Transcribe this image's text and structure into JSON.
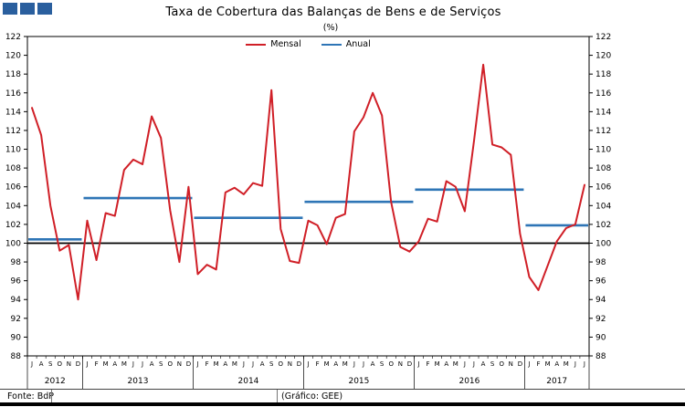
{
  "header": {
    "title": "Taxa de Cobertura das Balanças de Bens e de Serviços",
    "subtitle": "(%)"
  },
  "footer": {
    "source": "Fonte: BdP",
    "credit": "(Gráfico: GEE)"
  },
  "colors": {
    "mensal_red": "#D01F27",
    "anual_blue": "#2E75B6",
    "logo_blue": "#2A5F9E",
    "reference_black": "#000000"
  },
  "chart_data": {
    "type": "line",
    "title": "Taxa de Cobertura das Balanças de Bens e de Serviços",
    "subtitle": "(%)",
    "ylim": [
      88,
      122
    ],
    "yticks": [
      88,
      90,
      92,
      94,
      96,
      98,
      100,
      102,
      104,
      106,
      108,
      110,
      112,
      114,
      116,
      118,
      120,
      122
    ],
    "reference_line": 100,
    "legend_position": "top",
    "grid": "off",
    "years": [
      {
        "label": "2012",
        "months": [
          "J",
          "A",
          "S",
          "O",
          "N",
          "D"
        ],
        "annual": 100.4
      },
      {
        "label": "2013",
        "months": [
          "J",
          "F",
          "M",
          "A",
          "M",
          "J",
          "J",
          "A",
          "S",
          "O",
          "N",
          "D"
        ],
        "annual": 104.8
      },
      {
        "label": "2014",
        "months": [
          "J",
          "F",
          "M",
          "A",
          "M",
          "J",
          "J",
          "A",
          "S",
          "O",
          "N",
          "D"
        ],
        "annual": 102.7
      },
      {
        "label": "2015",
        "months": [
          "J",
          "F",
          "M",
          "A",
          "M",
          "J",
          "J",
          "A",
          "S",
          "O",
          "N",
          "D"
        ],
        "annual": 104.4
      },
      {
        "label": "2016",
        "months": [
          "J",
          "F",
          "M",
          "A",
          "M",
          "J",
          "J",
          "A",
          "S",
          "O",
          "N",
          "D"
        ],
        "annual": 105.7
      },
      {
        "label": "2017",
        "months": [
          "J",
          "F",
          "M",
          "A",
          "M",
          "J",
          "J"
        ],
        "annual": 101.9
      }
    ],
    "series": [
      {
        "name": "Mensal",
        "color": "#D01F27",
        "values": [
          114.4,
          111.5,
          104.0,
          99.2,
          99.8,
          94.0,
          102.4,
          98.2,
          103.2,
          102.9,
          107.8,
          108.9,
          108.4,
          113.5,
          111.2,
          103.5,
          98.0,
          106.0,
          96.7,
          97.7,
          97.2,
          105.4,
          105.9,
          105.2,
          106.4,
          106.1,
          116.3,
          101.5,
          98.1,
          97.9,
          102.4,
          101.9,
          99.9,
          102.7,
          103.1,
          111.9,
          113.4,
          116.0,
          113.6,
          104.4,
          99.6,
          99.1,
          100.2,
          102.6,
          102.3,
          106.6,
          106.0,
          103.4,
          110.9,
          119.0,
          110.5,
          110.2,
          109.4,
          101.0,
          96.4,
          95.0,
          97.6,
          100.2,
          101.6,
          102.0,
          106.2
        ]
      },
      {
        "name": "Anual",
        "color": "#2E75B6",
        "values_by_year": [
          100.4,
          104.8,
          102.7,
          104.4,
          105.7,
          101.9
        ]
      }
    ]
  }
}
